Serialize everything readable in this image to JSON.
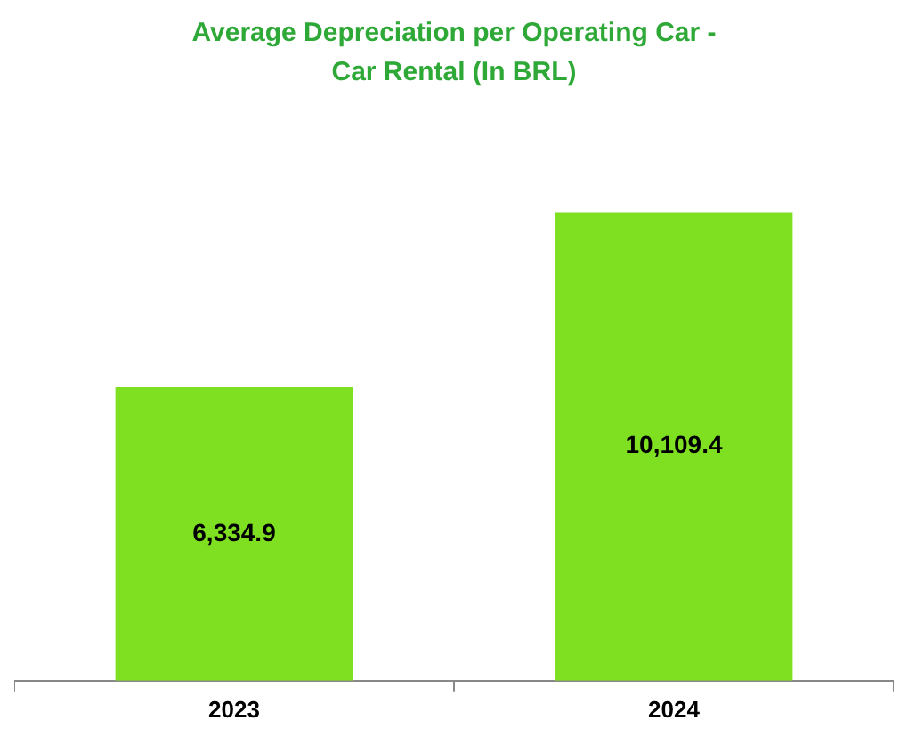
{
  "chart_data": {
    "type": "bar",
    "title": "Average Depreciation per Operating Car - Car Rental (In BRL)",
    "categories": [
      "2023",
      "2024"
    ],
    "values": [
      6334.9,
      10109.4
    ],
    "value_labels": [
      "6,334.9",
      "10,109.4"
    ],
    "color": "#7ee021",
    "grid": false,
    "legend": false
  }
}
